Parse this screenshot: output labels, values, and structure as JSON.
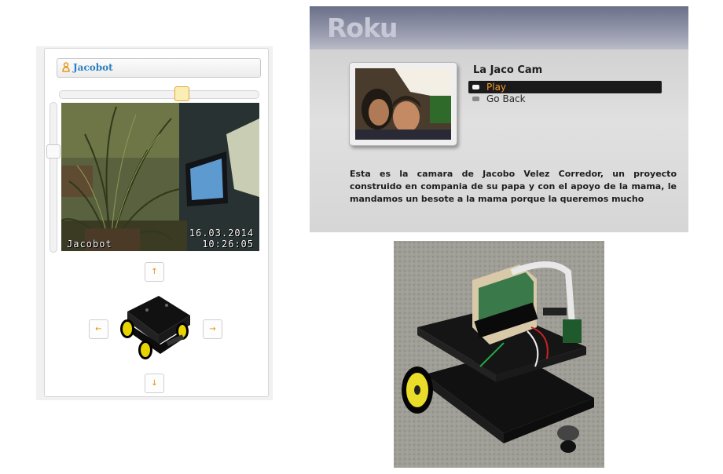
{
  "web_ui": {
    "title": "Jacobot",
    "camera": {
      "overlay_name": "Jacobot",
      "overlay_date": "16.03.2014",
      "overlay_time": "10:26:05"
    },
    "controls": {
      "up": "↑",
      "down": "↓",
      "left": "←",
      "right": "→"
    },
    "icons": {
      "user": "user-icon"
    },
    "colors": {
      "title_text": "#2b7fc1",
      "arrow": "#e48b00",
      "slider_thumb": "#fbeeb4"
    }
  },
  "roku": {
    "logo": "Roku",
    "channel_title": "La Jaco Cam",
    "menu": [
      {
        "label": "Play",
        "selected": true
      },
      {
        "label": "Go Back",
        "selected": false
      }
    ],
    "description": "Esta es la camara de Jacobo Velez Corredor, un proyecto construido en compania de su papa y con el apoyo de la mama, le mandamos un besote a la mama porque la queremos mucho",
    "colors": {
      "selected_text": "#f29a2e",
      "selected_bg": "#1a1a1a"
    }
  }
}
